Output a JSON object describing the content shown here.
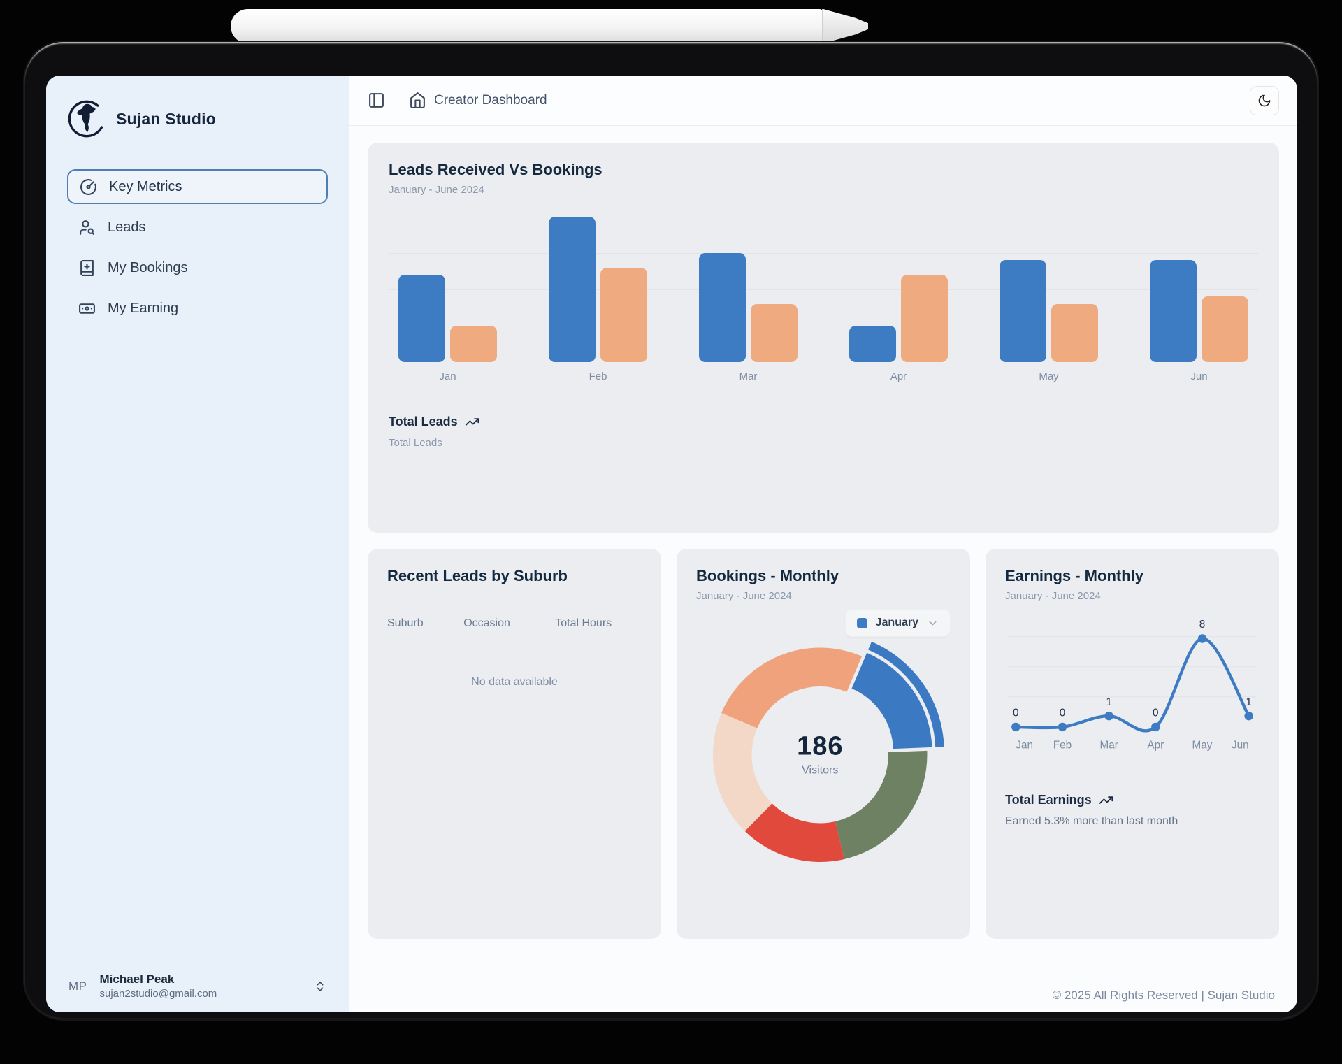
{
  "brand": {
    "name": "Sujan Studio"
  },
  "header": {
    "breadcrumb": "Creator Dashboard"
  },
  "sidebar": {
    "items": [
      {
        "label": "Key Metrics",
        "icon": "gauge-icon",
        "active": true
      },
      {
        "label": "Leads",
        "icon": "user-search-icon",
        "active": false
      },
      {
        "label": "My Bookings",
        "icon": "book-plus-icon",
        "active": false
      },
      {
        "label": "My Earning",
        "icon": "banknote-icon",
        "active": false
      }
    ],
    "user": {
      "initials": "MP",
      "name": "Michael Peak",
      "email": "sujan2studio@gmail.com"
    }
  },
  "footer": {
    "copyright": "© 2025 All Rights Reserved | Sujan Studio"
  },
  "colors": {
    "accent_blue": "#3d7bc2",
    "accent_orange": "#f0aa80",
    "donut_green": "#6e8163",
    "donut_red": "#e2493d",
    "donut_pale": "#f3d8c7",
    "donut_salmon": "#f0a27c",
    "sidebar_bg": "#e8f0f9",
    "card_bg": "#ebedf0",
    "text_dark": "#14293f",
    "text_muted": "#8a99ad"
  },
  "chart_data": [
    {
      "type": "bar",
      "title": "Leads Received Vs Bookings",
      "subtitle": "January - June 2024",
      "categories": [
        "Jan",
        "Feb",
        "Mar",
        "Apr",
        "May",
        "Jun"
      ],
      "series": [
        {
          "name": "Leads Received",
          "color": "#3d7bc2",
          "values": [
            12,
            20,
            15,
            5,
            14,
            14
          ]
        },
        {
          "name": "Bookings",
          "color": "#f0aa80",
          "values": [
            5,
            13,
            8,
            12,
            8,
            9
          ]
        }
      ],
      "ylim": [
        0,
        20
      ],
      "values_estimated": true,
      "grid": true,
      "footer_label": "Total Leads",
      "footer_sublabel": "Total Leads"
    },
    {
      "type": "table",
      "title": "Recent Leads by Suburb",
      "columns": [
        "Suburb",
        "Occasion",
        "Total Hours"
      ],
      "rows": [],
      "empty_text": "No data available"
    },
    {
      "type": "pie",
      "title": "Bookings - Monthly",
      "subtitle": "January - June 2024",
      "selector": {
        "label": "January",
        "swatch_color": "#3d7bc2"
      },
      "center_value": "186",
      "center_label": "Visitors",
      "start_angle_deg": 23,
      "segments": [
        {
          "label": "January",
          "percent": 18,
          "color": "#3b7ac2",
          "exploded": true
        },
        {
          "label": "",
          "percent": 22,
          "color": "#6e8163",
          "exploded": false
        },
        {
          "label": "",
          "percent": 16,
          "color": "#e2493d",
          "exploded": false
        },
        {
          "label": "",
          "percent": 19,
          "color": "#f3d8c7",
          "exploded": false
        },
        {
          "label": "",
          "percent": 25,
          "color": "#f0a27c",
          "exploded": false
        }
      ],
      "percents_estimated": true
    },
    {
      "type": "line",
      "title": "Earnings - Monthly",
      "subtitle": "January - June 2024",
      "x": [
        "Jan",
        "Feb",
        "Mar",
        "Apr",
        "May",
        "Jun"
      ],
      "values": [
        0,
        0,
        1,
        0,
        8,
        1
      ],
      "point_labels": [
        "0",
        "0",
        "1",
        "0",
        "8",
        "1"
      ],
      "line_color": "#3d7bc2",
      "ylim": [
        0,
        8
      ],
      "footer_label": "Total Earnings",
      "footer_note": "Earned 5.3% more than last month"
    }
  ]
}
